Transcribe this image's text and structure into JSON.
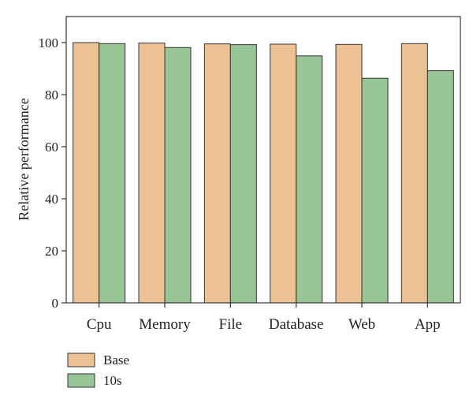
{
  "chart_data": {
    "type": "bar",
    "categories": [
      "Cpu",
      "Memory",
      "File",
      "Database",
      "Web",
      "App"
    ],
    "series": [
      {
        "name": "Base",
        "values": [
          100,
          99.8,
          99.5,
          99.4,
          99.3,
          99.6
        ],
        "color": "#ecc295"
      },
      {
        "name": "10s",
        "values": [
          99.6,
          98.1,
          99.2,
          94.9,
          86.3,
          89.2
        ],
        "color": "#97c595"
      }
    ],
    "ylabel": "Relative performance",
    "xlabel": "",
    "ylim": [
      0,
      110
    ],
    "yticks": [
      0,
      20,
      40,
      60,
      80,
      100
    ],
    "grid": false,
    "legend_position": "bottom-left"
  }
}
